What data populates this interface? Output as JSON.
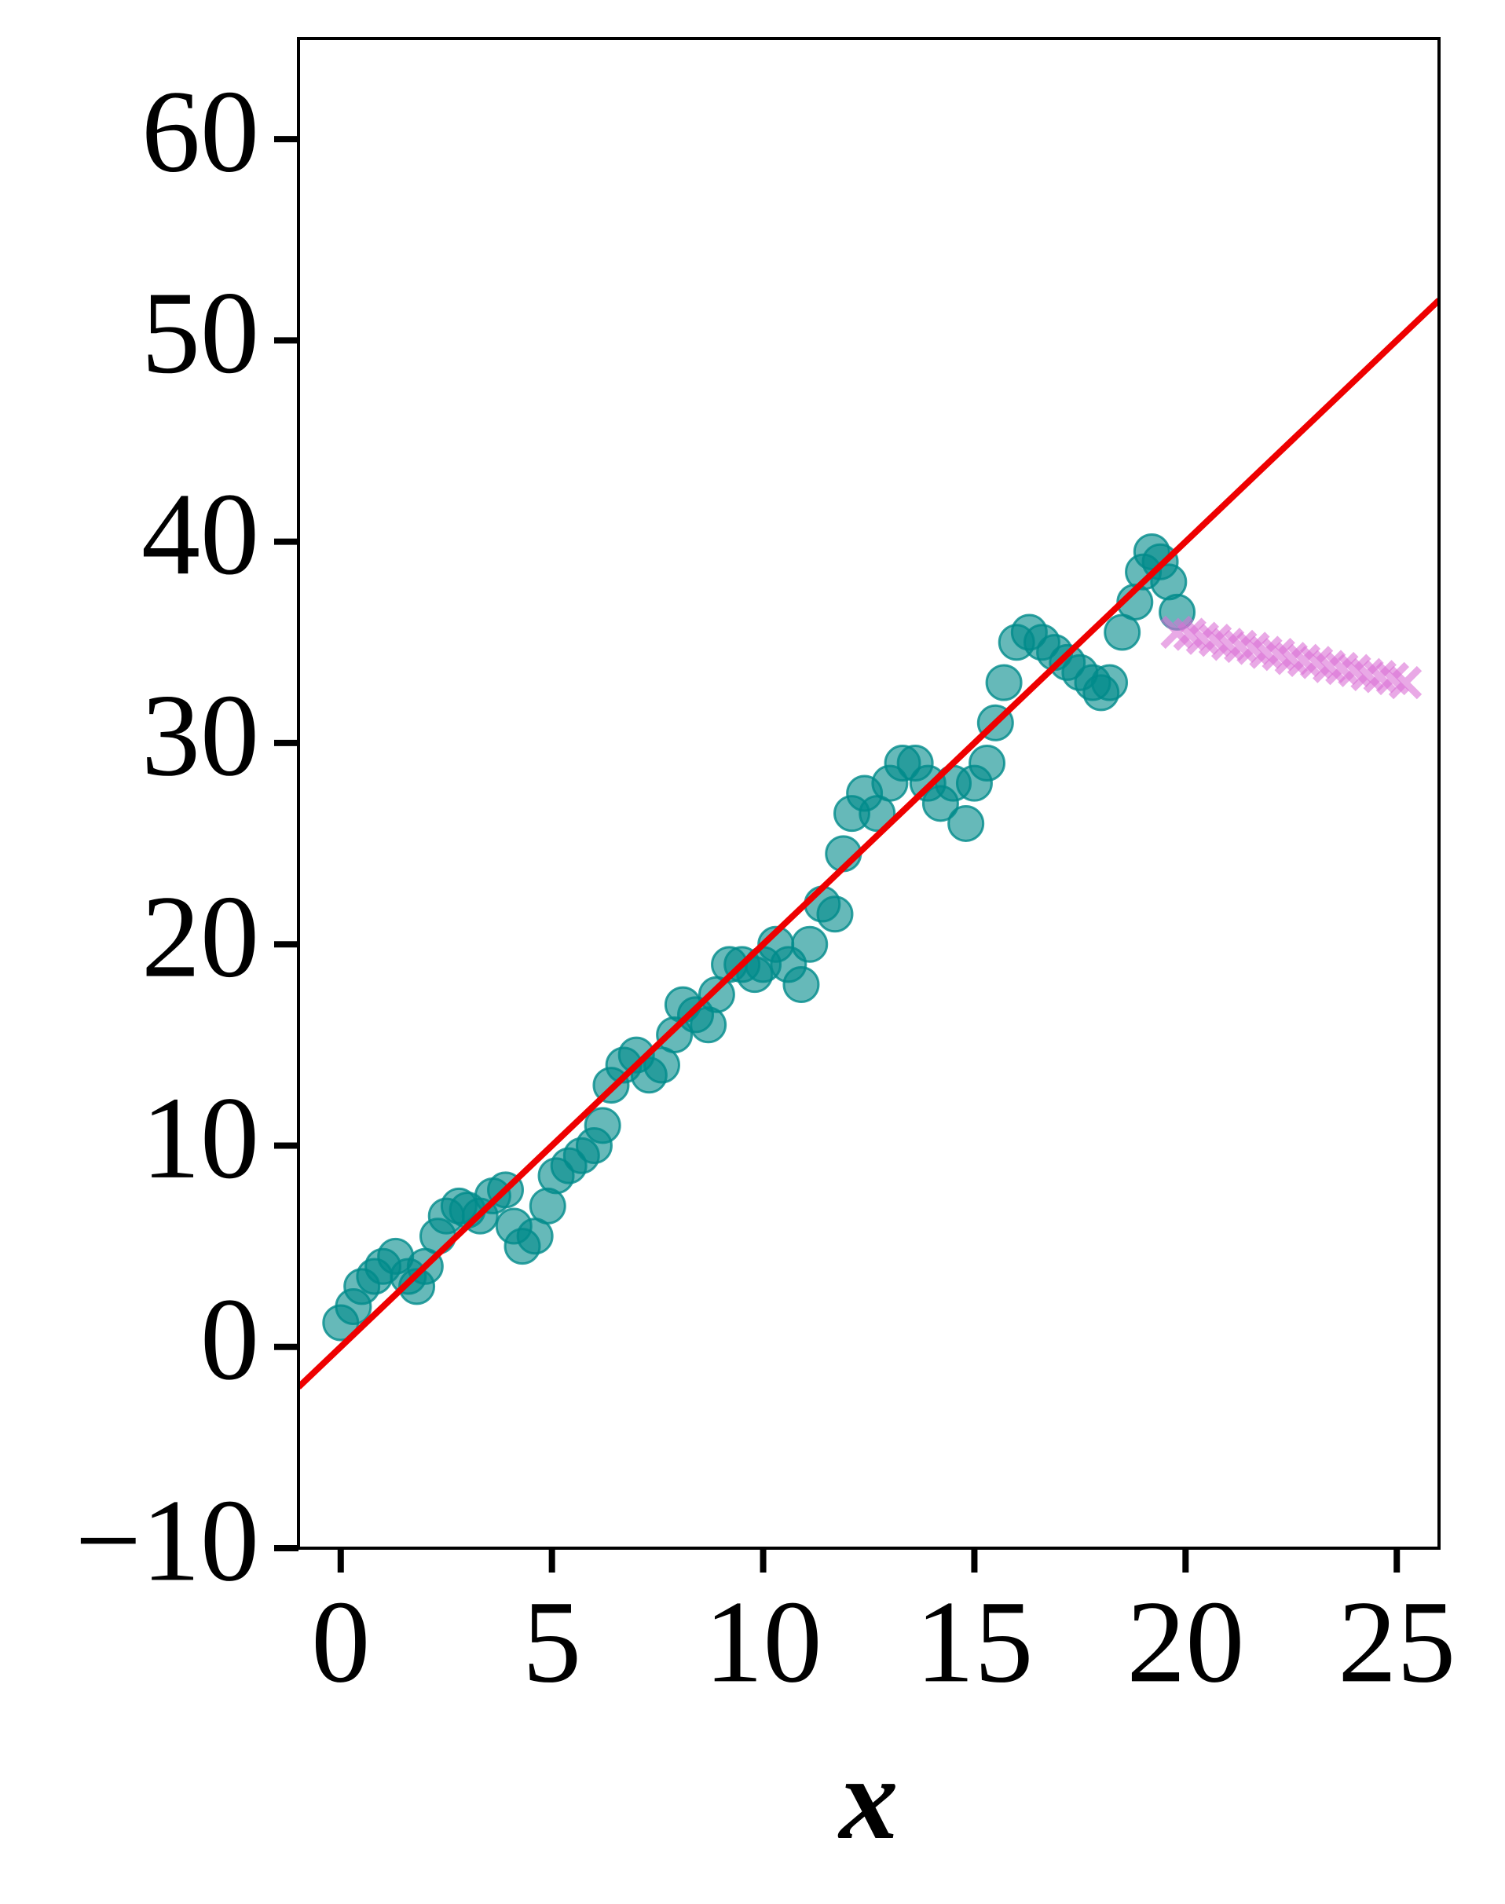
{
  "chart_data": {
    "type": "scatter",
    "xlabel": "x",
    "xlim": [
      -1,
      26
    ],
    "ylim": [
      -10,
      65
    ],
    "xticks": [
      0,
      5,
      10,
      15,
      20,
      25
    ],
    "yticks": [
      {
        "value": -10,
        "label": "−10"
      },
      0,
      10,
      20,
      30,
      40,
      50,
      60
    ],
    "series": [
      {
        "marker": "o",
        "color": "#008b8b",
        "x": [
          0,
          0.3,
          0.5,
          0.8,
          1.0,
          1.3,
          1.6,
          1.8,
          2.0,
          2.3,
          2.5,
          2.8,
          3.0,
          3.3,
          3.6,
          3.9,
          4.1,
          4.3,
          4.6,
          4.9,
          5.1,
          5.4,
          5.7,
          6.0,
          6.2,
          6.4,
          6.7,
          7.0,
          7.3,
          7.6,
          7.9,
          8.1,
          8.4,
          8.7,
          8.9,
          9.2,
          9.5,
          9.8,
          10.0,
          10.3,
          10.6,
          10.9,
          11.1,
          11.4,
          11.7,
          11.9,
          12.1,
          12.4,
          12.7,
          13.0,
          13.3,
          13.6,
          13.9,
          14.2,
          14.5,
          14.8,
          15.0,
          15.3,
          15.5,
          15.7,
          16.0,
          16.3,
          16.6,
          16.9,
          17.2,
          17.5,
          17.8,
          18.0,
          18.2,
          18.5,
          18.8,
          19.0,
          19.2,
          19.4,
          19.6,
          19.8
        ],
        "values": [
          1.2,
          2,
          3,
          3.5,
          4,
          4.5,
          3.5,
          3,
          4,
          5.5,
          6.5,
          7,
          6.8,
          6.5,
          7.5,
          7.8,
          6,
          5,
          5.5,
          7,
          8.5,
          9,
          9.5,
          10,
          11,
          13,
          14,
          14.5,
          13.5,
          14,
          15.5,
          17,
          16.5,
          16,
          17.5,
          19,
          19,
          18.5,
          19,
          20,
          19,
          18,
          20,
          22,
          21.5,
          24.5,
          26.5,
          27.5,
          26.5,
          28,
          29,
          29,
          28,
          27,
          28,
          26,
          28,
          29,
          31,
          33,
          35,
          35.5,
          35,
          34.5,
          34,
          33.5,
          33,
          32.5,
          33,
          35.5,
          37,
          38.5,
          39.5,
          39,
          38,
          36.5
        ]
      },
      {
        "marker": "x",
        "color": "#da70d6",
        "x": [
          19.8,
          20.1,
          20.4,
          20.7,
          21.0,
          21.3,
          21.6,
          21.9,
          22.2,
          22.5,
          22.8,
          23.1,
          23.4,
          23.7,
          24.0,
          24.3,
          24.6,
          24.9,
          25.2
        ],
        "values": [
          35.5,
          35.4,
          35.2,
          35.1,
          34.9,
          34.8,
          34.7,
          34.5,
          34.4,
          34.2,
          34.1,
          34.0,
          33.8,
          33.7,
          33.6,
          33.4,
          33.3,
          33.2,
          33.0
        ]
      },
      {
        "marker": "line",
        "color": "#ee0000",
        "x": [
          -1,
          26
        ],
        "values": [
          -2,
          52
        ]
      }
    ]
  }
}
